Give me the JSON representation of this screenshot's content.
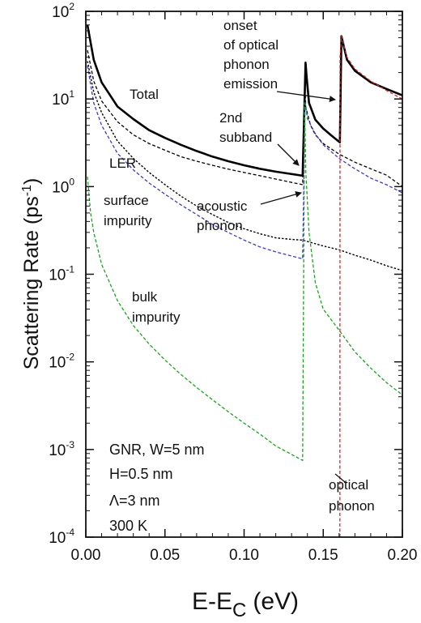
{
  "chart_data": {
    "type": "line",
    "xlabel": "E-E",
    "xlabel_sub": "C",
    "xlabel_unit": "(eV)",
    "ylabel": "Scattering Rate (ps",
    "ylabel_sup": "-1",
    "ylabel_close": ")",
    "xlim": [
      0,
      0.2
    ],
    "ylim": [
      0.0001,
      100
    ],
    "y_scale": "log",
    "grid": false,
    "x_ticks": [
      "0.00",
      "0.05",
      "0.10",
      "0.15",
      "0.20"
    ],
    "y_ticks": [
      {
        "base": "10",
        "exp": "2"
      },
      {
        "base": "10",
        "exp": "1"
      },
      {
        "base": "10",
        "exp": "0"
      },
      {
        "base": "10",
        "exp": "-1"
      },
      {
        "base": "10",
        "exp": "-2"
      },
      {
        "base": "10",
        "exp": "-3"
      },
      {
        "base": "10",
        "exp": "-4"
      }
    ],
    "series": [
      {
        "name": "Total",
        "color": "#000000",
        "style": "solid-thick",
        "points": [
          [
            0.001,
            70
          ],
          [
            0.005,
            28
          ],
          [
            0.01,
            15.5
          ],
          [
            0.02,
            8.2
          ],
          [
            0.03,
            5.9
          ],
          [
            0.04,
            4.4
          ],
          [
            0.05,
            3.6
          ],
          [
            0.06,
            3.0
          ],
          [
            0.07,
            2.55
          ],
          [
            0.08,
            2.2
          ],
          [
            0.09,
            1.95
          ],
          [
            0.1,
            1.75
          ],
          [
            0.11,
            1.6
          ],
          [
            0.12,
            1.48
          ],
          [
            0.137,
            1.33
          ],
          [
            0.1388,
            26
          ],
          [
            0.1395,
            18
          ],
          [
            0.141,
            9
          ],
          [
            0.145,
            5.8
          ],
          [
            0.15,
            4.6
          ],
          [
            0.155,
            3.85
          ],
          [
            0.1605,
            3.2
          ],
          [
            0.1615,
            52
          ],
          [
            0.165,
            28
          ],
          [
            0.17,
            21
          ],
          [
            0.18,
            15.5
          ],
          [
            0.19,
            13
          ],
          [
            0.2,
            11
          ]
        ]
      },
      {
        "name": "LER",
        "color": "#000000",
        "style": "dashed",
        "points": [
          [
            0.001,
            36
          ],
          [
            0.005,
            16
          ],
          [
            0.01,
            9.5
          ],
          [
            0.02,
            5.5
          ],
          [
            0.03,
            3.9
          ],
          [
            0.04,
            3.1
          ],
          [
            0.05,
            2.6
          ],
          [
            0.06,
            2.2
          ],
          [
            0.07,
            1.95
          ],
          [
            0.08,
            1.75
          ],
          [
            0.09,
            1.58
          ],
          [
            0.1,
            1.45
          ],
          [
            0.11,
            1.33
          ],
          [
            0.12,
            1.22
          ],
          [
            0.137,
            1.05
          ],
          [
            0.1385,
            14
          ],
          [
            0.139,
            8
          ],
          [
            0.142,
            5
          ],
          [
            0.145,
            3.9
          ],
          [
            0.15,
            3.1
          ],
          [
            0.16,
            2.35
          ],
          [
            0.17,
            1.9
          ],
          [
            0.18,
            1.6
          ],
          [
            0.19,
            1.35
          ],
          [
            0.2,
            1.0
          ]
        ]
      },
      {
        "name": "acoustic phonon",
        "color": "#000000",
        "style": "dotted",
        "points": [
          [
            0.001,
            27
          ],
          [
            0.005,
            12
          ],
          [
            0.01,
            7
          ],
          [
            0.02,
            3.3
          ],
          [
            0.03,
            2.1
          ],
          [
            0.04,
            1.45
          ],
          [
            0.05,
            1.05
          ],
          [
            0.06,
            0.78
          ],
          [
            0.07,
            0.6
          ],
          [
            0.08,
            0.48
          ],
          [
            0.09,
            0.39
          ],
          [
            0.1,
            0.33
          ],
          [
            0.11,
            0.29
          ],
          [
            0.12,
            0.26
          ],
          [
            0.13,
            0.25
          ],
          [
            0.137,
            0.245
          ],
          [
            0.15,
            0.21
          ],
          [
            0.16,
            0.19
          ],
          [
            0.17,
            0.165
          ],
          [
            0.18,
            0.145
          ],
          [
            0.19,
            0.125
          ],
          [
            0.2,
            0.11
          ]
        ]
      },
      {
        "name": "surface impurity",
        "color": "#3a3acc",
        "style": "dashed",
        "points": [
          [
            0.001,
            24
          ],
          [
            0.005,
            9
          ],
          [
            0.01,
            5
          ],
          [
            0.02,
            2.4
          ],
          [
            0.03,
            1.55
          ],
          [
            0.04,
            1.1
          ],
          [
            0.05,
            0.82
          ],
          [
            0.06,
            0.62
          ],
          [
            0.07,
            0.48
          ],
          [
            0.08,
            0.37
          ],
          [
            0.09,
            0.3
          ],
          [
            0.1,
            0.245
          ],
          [
            0.11,
            0.205
          ],
          [
            0.12,
            0.18
          ],
          [
            0.137,
            0.15
          ],
          [
            0.1385,
            9.5
          ],
          [
            0.14,
            6
          ],
          [
            0.145,
            4
          ],
          [
            0.15,
            3
          ],
          [
            0.16,
            2.1
          ],
          [
            0.17,
            1.6
          ],
          [
            0.18,
            1.25
          ],
          [
            0.19,
            1.05
          ],
          [
            0.2,
            0.85
          ]
        ]
      },
      {
        "name": "bulk impurity",
        "color": "#18a418",
        "style": "dashed",
        "points": [
          [
            0.001,
            1.3
          ],
          [
            0.003,
            0.5
          ],
          [
            0.005,
            0.3
          ],
          [
            0.01,
            0.13
          ],
          [
            0.02,
            0.05
          ],
          [
            0.03,
            0.026
          ],
          [
            0.04,
            0.016
          ],
          [
            0.05,
            0.0105
          ],
          [
            0.06,
            0.0072
          ],
          [
            0.07,
            0.0051
          ],
          [
            0.08,
            0.0037
          ],
          [
            0.09,
            0.0027
          ],
          [
            0.1,
            0.002
          ],
          [
            0.11,
            0.0015
          ],
          [
            0.12,
            0.0011
          ],
          [
            0.137,
            0.00075
          ],
          [
            0.1382,
            9
          ],
          [
            0.139,
            1.5
          ],
          [
            0.141,
            0.3
          ],
          [
            0.145,
            0.08
          ],
          [
            0.15,
            0.04
          ],
          [
            0.16,
            0.023
          ],
          [
            0.17,
            0.013
          ],
          [
            0.18,
            0.0085
          ],
          [
            0.19,
            0.0058
          ],
          [
            0.2,
            0.0042
          ]
        ]
      },
      {
        "name": "optical phonon",
        "color": "#d8242a",
        "style": "dashed",
        "points": [
          [
            0.1605,
            0.0001
          ],
          [
            0.1606,
            30
          ],
          [
            0.1615,
            52
          ],
          [
            0.165,
            30
          ],
          [
            0.17,
            22
          ],
          [
            0.18,
            16
          ],
          [
            0.19,
            12.5
          ],
          [
            0.2,
            10
          ]
        ]
      }
    ],
    "annotations": {
      "total": "Total",
      "onset_1": "onset",
      "onset_2": "of optical",
      "onset_3": "phonon",
      "onset_4": "emission",
      "second_1": "2nd",
      "second_2": "subband",
      "ler": "LER",
      "surface_1": "surface",
      "surface_2": "impurity",
      "acoustic_1": "acoustic",
      "acoustic_2": "phonon",
      "bulk_1": "bulk",
      "bulk_2": "impurity",
      "optical_1": "optical",
      "optical_2": "phonon"
    },
    "info_lines": [
      "GNR, W=5 nm",
      "H=0.5 nm",
      "Λ=3 nm",
      "300 K"
    ]
  }
}
